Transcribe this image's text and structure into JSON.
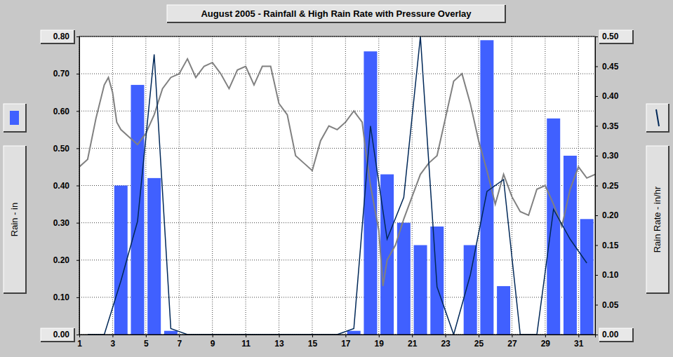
{
  "chart_data": {
    "type": "bar",
    "title": "August 2005 - Rainfall & High Rain Rate with Pressure Overlay",
    "y_label": "Rain - in",
    "y2_label": "Rain Rate - in/hr",
    "x": [
      1.5,
      2.5,
      3.5,
      4.5,
      5.5,
      6.5,
      7.5,
      8.5,
      9.5,
      10.5,
      11.5,
      12.5,
      13.5,
      14.5,
      15.5,
      16.5,
      17.5,
      18.5,
      19.5,
      20.5,
      21.5,
      22.5,
      23.5,
      24.5,
      25.5,
      26.5,
      27.5,
      28.5,
      29.5,
      30.5,
      31.5
    ],
    "series": [
      {
        "type": "bar",
        "color": "#4060ff",
        "values": [
          0,
          0,
          0.4,
          0.67,
          0.42,
          0.01,
          0,
          0,
          0,
          0,
          0,
          0,
          0,
          0,
          0,
          0,
          0.01,
          0.76,
          0.43,
          0.3,
          0.24,
          0.29,
          0,
          0.24,
          0.79,
          0.13,
          0,
          0,
          0.58,
          0.48,
          0.31
        ]
      },
      {
        "type": "line",
        "color": "#002858",
        "axis": "y2",
        "values": [
          0,
          0,
          0.09,
          0.19,
          0.47,
          0.01,
          0,
          0,
          0,
          0,
          0,
          0,
          0,
          0,
          0,
          0,
          0.01,
          0.35,
          0.16,
          0.23,
          0.5,
          0.08,
          0,
          0.1,
          0.24,
          0.26,
          0,
          0,
          0.21,
          0.16,
          0.12
        ]
      },
      {
        "type": "line",
        "color": "#808080",
        "x": [
          1,
          1.5,
          2,
          2.5,
          2.75,
          3,
          3.25,
          3.5,
          4,
          4.5,
          5,
          5.5,
          6,
          6.5,
          7,
          7.5,
          8,
          8.5,
          9,
          9.5,
          10,
          10.5,
          11,
          11.5,
          12,
          12.5,
          13,
          13.5,
          14,
          14.5,
          15,
          15.5,
          16,
          16.5,
          17,
          17.5,
          18,
          18.25,
          18.5,
          19,
          19.25,
          19.5,
          20,
          20.5,
          21,
          21.5,
          22,
          22.5,
          23,
          23.5,
          24,
          24.5,
          25,
          25.5,
          26,
          26.5,
          27,
          27.5,
          28,
          28.5,
          29,
          29.5,
          30,
          30.5,
          31,
          31.5,
          32
        ],
        "values": [
          0.45,
          0.47,
          0.58,
          0.67,
          0.69,
          0.65,
          0.57,
          0.55,
          0.53,
          0.51,
          0.54,
          0.59,
          0.66,
          0.69,
          0.7,
          0.74,
          0.69,
          0.72,
          0.73,
          0.7,
          0.66,
          0.71,
          0.72,
          0.67,
          0.72,
          0.72,
          0.62,
          0.59,
          0.48,
          0.46,
          0.44,
          0.52,
          0.56,
          0.55,
          0.57,
          0.6,
          0.57,
          0.48,
          0.4,
          0.28,
          0.13,
          0.2,
          0.24,
          0.31,
          0.37,
          0.43,
          0.46,
          0.48,
          0.58,
          0.68,
          0.7,
          0.62,
          0.52,
          0.44,
          0.35,
          0.43,
          0.37,
          0.33,
          0.32,
          0.39,
          0.4,
          0.35,
          0.29,
          0.39,
          0.45,
          0.42,
          0.43
        ]
      }
    ],
    "xlim": [
      1,
      32
    ],
    "xticks": [
      1,
      3,
      5,
      7,
      9,
      11,
      13,
      15,
      17,
      19,
      21,
      23,
      25,
      27,
      29,
      31
    ],
    "ylim": [
      0,
      0.8
    ],
    "yticks": [
      {
        "value": 0,
        "label": "0.00"
      },
      {
        "value": 0.1,
        "label": "0.10"
      },
      {
        "value": 0.2,
        "label": "0.20"
      },
      {
        "value": 0.3,
        "label": "0.30"
      },
      {
        "value": 0.4,
        "label": "0.40"
      },
      {
        "value": 0.5,
        "label": "0.50"
      },
      {
        "value": 0.6,
        "label": "0.60"
      },
      {
        "value": 0.7,
        "label": "0.70"
      },
      {
        "value": 0.8,
        "label": "0.80"
      }
    ],
    "y2lim": [
      0,
      0.5
    ],
    "y2ticks": [
      {
        "value": 0,
        "label": "0.00"
      },
      {
        "value": 0.05,
        "label": "0.05"
      },
      {
        "value": 0.1,
        "label": "0.10"
      },
      {
        "value": 0.15,
        "label": "0.15"
      },
      {
        "value": 0.2,
        "label": "0.20"
      },
      {
        "value": 0.25,
        "label": "0.25"
      },
      {
        "value": 0.3,
        "label": "0.30"
      },
      {
        "value": 0.35,
        "label": "0.35"
      },
      {
        "value": 0.4,
        "label": "0.40"
      },
      {
        "value": 0.45,
        "label": "0.45"
      },
      {
        "value": 0.5,
        "label": "0.50"
      }
    ],
    "grid": true
  }
}
